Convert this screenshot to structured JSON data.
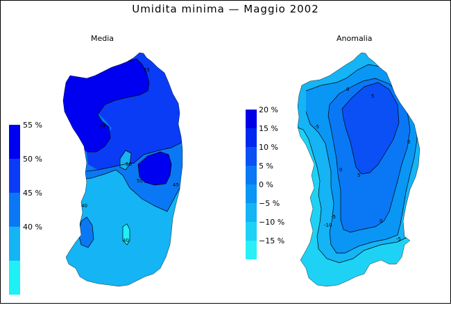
{
  "title": "Umidita  minima  —  Maggio  2002",
  "panels": {
    "left_title": "Media",
    "right_title": "Anomalia"
  },
  "legend_left": {
    "items": [
      {
        "label": "55 %",
        "color": "#0000f0"
      },
      {
        "label": "50 %",
        "color": "#0a3cf5"
      },
      {
        "label": "45 %",
        "color": "#0a78f5"
      },
      {
        "label": "40 %",
        "color": "#14b4f5"
      },
      {
        "label": "",
        "color": "#1ef0f5"
      }
    ]
  },
  "legend_right": {
    "items": [
      {
        "label": "20 %",
        "color": "#0000e6"
      },
      {
        "label": "15 %",
        "color": "#0028f0"
      },
      {
        "label": "10 %",
        "color": "#0a50f5"
      },
      {
        "label": "5 %",
        "color": "#0a78f5"
      },
      {
        "label": "0 %",
        "color": "#0a96f5"
      },
      {
        "label": "−5 %",
        "color": "#14b4f5"
      },
      {
        "label": "−10 %",
        "color": "#1ed2f5"
      },
      {
        "label": "−15 %",
        "color": "#28f0f5"
      }
    ]
  },
  "contour_labels": {
    "left": [
      "40",
      "45",
      "45",
      "50",
      "55",
      "50",
      "45",
      "40"
    ],
    "right": [
      "0",
      "5",
      "10",
      "5",
      "0",
      "-5",
      "-10",
      "-5"
    ]
  }
}
